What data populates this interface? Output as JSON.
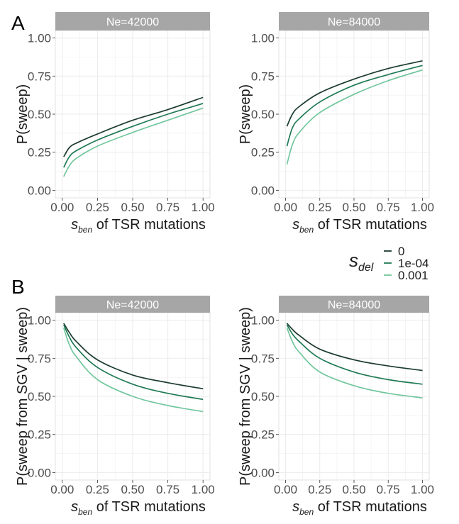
{
  "colors": {
    "0": "#1c3b2f",
    "1e-04": "#1f7a55",
    "0.001": "#72c79d",
    "strip": "#a6a6a6",
    "grid": "#ebebeb"
  },
  "legend": {
    "title_main": "s",
    "title_sub": "del",
    "entries": [
      "0",
      "1e-04",
      "0.001"
    ]
  },
  "panel_letters": [
    "A",
    "B"
  ],
  "chart_data": [
    {
      "type": "line",
      "panel": "A",
      "strip": "Ne=42000",
      "xlabel_main": "s",
      "xlabel_sub": "ben",
      "xlabel_rest": " of TSR mutations",
      "ylabel": "P(sweep)",
      "xlim": [
        0,
        1
      ],
      "ylim": [
        0,
        1
      ],
      "xticks": [
        "0.00",
        "0.25",
        "0.50",
        "0.75",
        "1.00"
      ],
      "yticks": [
        "0.00",
        "0.25",
        "0.50",
        "0.75",
        "1.00"
      ],
      "grid": true,
      "x": [
        0.01,
        0.05,
        0.1,
        0.25,
        0.5,
        0.75,
        1.0
      ],
      "series": [
        {
          "name": "0",
          "values": [
            0.22,
            0.28,
            0.31,
            0.37,
            0.46,
            0.53,
            0.61
          ]
        },
        {
          "name": "1e-04",
          "values": [
            0.15,
            0.22,
            0.26,
            0.33,
            0.42,
            0.5,
            0.57
          ]
        },
        {
          "name": "0.001",
          "values": [
            0.09,
            0.16,
            0.21,
            0.29,
            0.38,
            0.46,
            0.54
          ]
        }
      ]
    },
    {
      "type": "line",
      "panel": "A",
      "strip": "Ne=84000",
      "xlabel_main": "s",
      "xlabel_sub": "ben",
      "xlabel_rest": " of TSR mutations",
      "ylabel": "P(sweep)",
      "xlim": [
        0,
        1
      ],
      "ylim": [
        0,
        1
      ],
      "xticks": [
        "0.00",
        "0.25",
        "0.50",
        "0.75",
        "1.00"
      ],
      "yticks": [
        "0.00",
        "0.25",
        "0.50",
        "0.75",
        "1.00"
      ],
      "grid": true,
      "x": [
        0.01,
        0.05,
        0.1,
        0.25,
        0.5,
        0.75,
        1.0
      ],
      "series": [
        {
          "name": "0",
          "values": [
            0.42,
            0.5,
            0.55,
            0.64,
            0.73,
            0.8,
            0.85
          ]
        },
        {
          "name": "1e-04",
          "values": [
            0.29,
            0.41,
            0.47,
            0.58,
            0.69,
            0.76,
            0.82
          ]
        },
        {
          "name": "0.001",
          "values": [
            0.17,
            0.3,
            0.38,
            0.51,
            0.63,
            0.72,
            0.79
          ]
        }
      ]
    },
    {
      "type": "line",
      "panel": "B",
      "strip": "Ne=42000",
      "xlabel_main": "s",
      "xlabel_sub": "ben",
      "xlabel_rest": " of TSR mutations",
      "ylabel": "P(sweep from SGV | sweep)",
      "xlim": [
        0,
        1
      ],
      "ylim": [
        0,
        1
      ],
      "xticks": [
        "0.00",
        "0.25",
        "0.50",
        "0.75",
        "1.00"
      ],
      "yticks": [
        "0.00",
        "0.25",
        "0.50",
        "0.75",
        "1.00"
      ],
      "grid": true,
      "x": [
        0.01,
        0.05,
        0.1,
        0.25,
        0.5,
        0.75,
        1.0
      ],
      "series": [
        {
          "name": "0",
          "values": [
            0.98,
            0.92,
            0.86,
            0.74,
            0.64,
            0.59,
            0.55
          ]
        },
        {
          "name": "1e-04",
          "values": [
            0.97,
            0.89,
            0.82,
            0.69,
            0.58,
            0.52,
            0.48
          ]
        },
        {
          "name": "0.001",
          "values": [
            0.95,
            0.84,
            0.76,
            0.61,
            0.5,
            0.44,
            0.4
          ]
        }
      ]
    },
    {
      "type": "line",
      "panel": "B",
      "strip": "Ne=84000",
      "xlabel_main": "s",
      "xlabel_sub": "ben",
      "xlabel_rest": " of TSR mutations",
      "ylabel": "P(sweep from SGV | sweep)",
      "xlim": [
        0,
        1
      ],
      "ylim": [
        0,
        1
      ],
      "xticks": [
        "0.00",
        "0.25",
        "0.50",
        "0.75",
        "1.00"
      ],
      "yticks": [
        "0.00",
        "0.25",
        "0.50",
        "0.75",
        "1.00"
      ],
      "grid": true,
      "x": [
        0.01,
        0.05,
        0.1,
        0.25,
        0.5,
        0.75,
        1.0
      ],
      "series": [
        {
          "name": "0",
          "values": [
            0.98,
            0.94,
            0.9,
            0.81,
            0.74,
            0.7,
            0.67
          ]
        },
        {
          "name": "1e-04",
          "values": [
            0.97,
            0.91,
            0.86,
            0.75,
            0.66,
            0.61,
            0.58
          ]
        },
        {
          "name": "0.001",
          "values": [
            0.95,
            0.86,
            0.79,
            0.66,
            0.57,
            0.52,
            0.49
          ]
        }
      ]
    }
  ]
}
